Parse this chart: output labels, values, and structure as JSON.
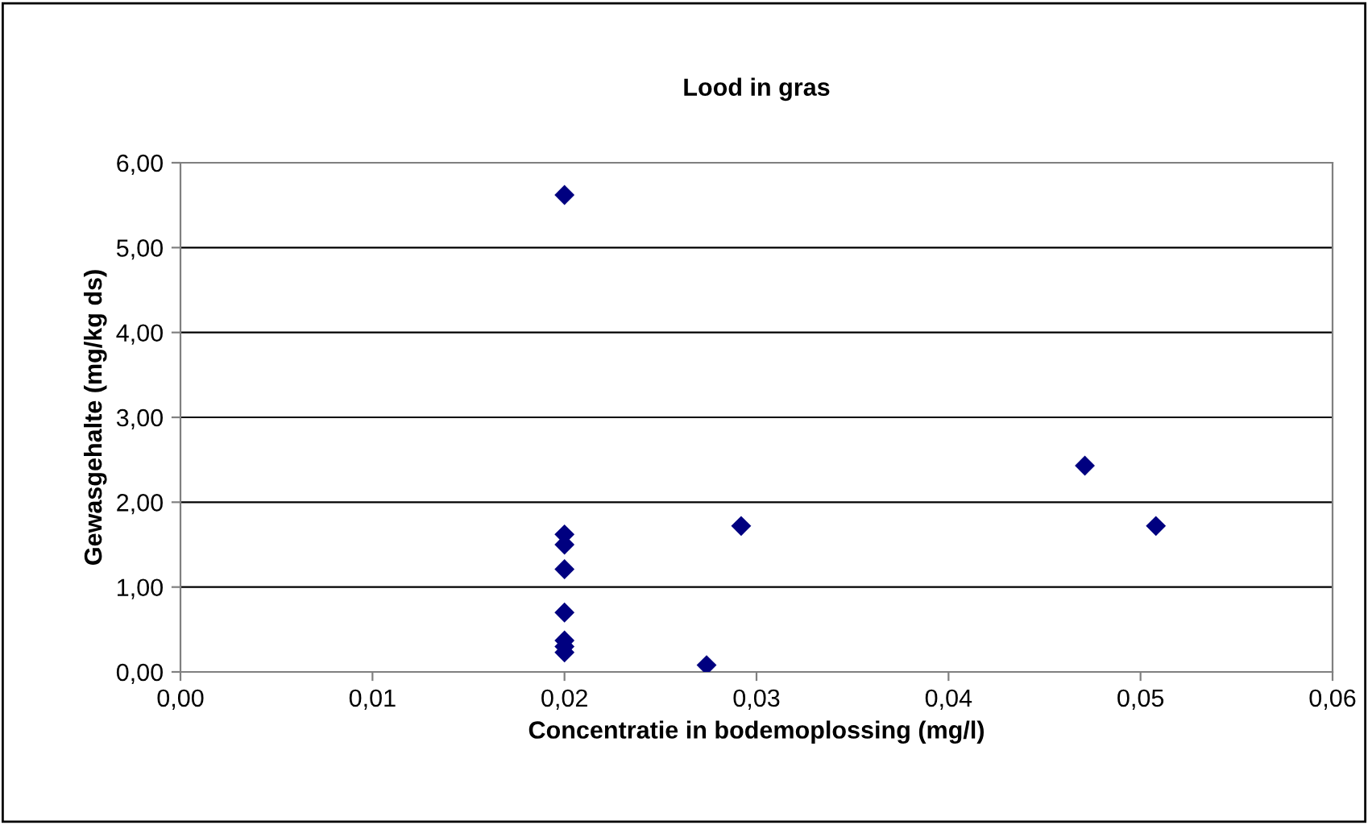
{
  "chart_data": {
    "type": "scatter",
    "title": "Lood in gras",
    "xlabel": "Concentratie in bodemoplossing (mg/l)",
    "ylabel": "Gewasgehalte (mg/kg ds)",
    "x": [
      0.02,
      0.02,
      0.02,
      0.02,
      0.02,
      0.02,
      0.02,
      0.02,
      0.0274,
      0.0292,
      0.0471,
      0.0508
    ],
    "series": [
      {
        "color": "#000080",
        "values": [
          5.62,
          1.62,
          1.5,
          1.21,
          0.7,
          0.37,
          0.3,
          0.23,
          0.08,
          1.72,
          2.43,
          1.72
        ]
      }
    ],
    "marker": "diamond",
    "grid": "y",
    "xlim": [
      0,
      0.06
    ],
    "xticks": [
      {
        "value": 0,
        "label": "0,00"
      },
      {
        "value": 0.01,
        "label": "0,01"
      },
      {
        "value": 0.02,
        "label": "0,02"
      },
      {
        "value": 0.03,
        "label": "0,03"
      },
      {
        "value": 0.04,
        "label": "0,04"
      },
      {
        "value": 0.05,
        "label": "0,05"
      },
      {
        "value": 0.06,
        "label": "0,06"
      }
    ],
    "ylim": [
      0,
      6
    ],
    "yticks": [
      {
        "value": 0,
        "label": "0,00"
      },
      {
        "value": 1,
        "label": "1,00"
      },
      {
        "value": 2,
        "label": "2,00"
      },
      {
        "value": 3,
        "label": "3,00"
      },
      {
        "value": 4,
        "label": "4,00"
      },
      {
        "value": 5,
        "label": "5,00"
      },
      {
        "value": 6,
        "label": "6,00"
      }
    ]
  }
}
